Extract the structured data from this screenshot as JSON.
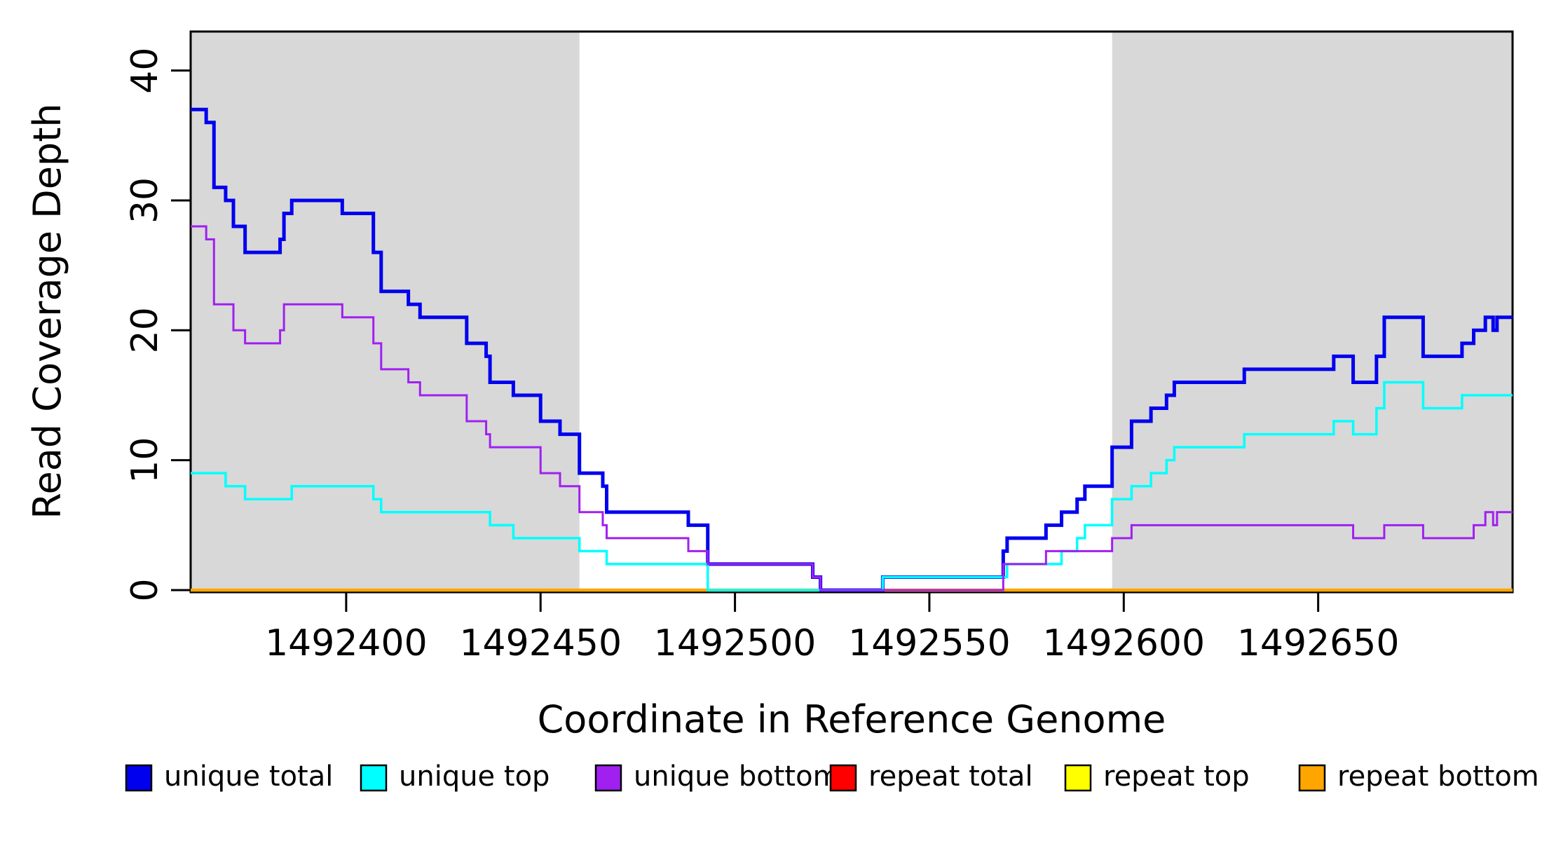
{
  "chart_data": {
    "type": "line",
    "subtype": "step",
    "title": "",
    "xlabel": "Coordinate in Reference Genome",
    "ylabel": "Read Coverage Depth",
    "xlim": [
      1492360,
      1492700
    ],
    "ylim": [
      0,
      43
    ],
    "xticks": [
      1492400,
      1492450,
      1492500,
      1492550,
      1492600,
      1492650
    ],
    "yticks": [
      0,
      10,
      20,
      30,
      40
    ],
    "grid": false,
    "legend_position": "bottom",
    "shaded_regions": [
      {
        "x0": 1492360,
        "x1": 1492460,
        "color": "#D8D8D8"
      },
      {
        "x0": 1492597,
        "x1": 1492700,
        "color": "#D8D8D8"
      }
    ],
    "draw_order": [
      "repeat total",
      "repeat top",
      "repeat bottom",
      "unique total",
      "unique top",
      "unique bottom"
    ],
    "series": [
      {
        "name": "unique total",
        "color": "#0000EE",
        "line_width": 5,
        "steps": [
          [
            1492360,
            37
          ],
          [
            1492364,
            36
          ],
          [
            1492366,
            31
          ],
          [
            1492369,
            30
          ],
          [
            1492371,
            28
          ],
          [
            1492374,
            26
          ],
          [
            1492383,
            27
          ],
          [
            1492384,
            29
          ],
          [
            1492386,
            30
          ],
          [
            1492399,
            29
          ],
          [
            1492407,
            26
          ],
          [
            1492409,
            23
          ],
          [
            1492416,
            22
          ],
          [
            1492419,
            21
          ],
          [
            1492431,
            19
          ],
          [
            1492436,
            18
          ],
          [
            1492437,
            16
          ],
          [
            1492443,
            15
          ],
          [
            1492450,
            13
          ],
          [
            1492455,
            12
          ],
          [
            1492460,
            9
          ],
          [
            1492466,
            8
          ],
          [
            1492467,
            6
          ],
          [
            1492488,
            5
          ],
          [
            1492493,
            2
          ],
          [
            1492520,
            1
          ],
          [
            1492522,
            0
          ],
          [
            1492538,
            1
          ],
          [
            1492569,
            3
          ],
          [
            1492570,
            4
          ],
          [
            1492580,
            5
          ],
          [
            1492584,
            6
          ],
          [
            1492588,
            7
          ],
          [
            1492590,
            8
          ],
          [
            1492597,
            11
          ],
          [
            1492602,
            13
          ],
          [
            1492607,
            14
          ],
          [
            1492611,
            15
          ],
          [
            1492613,
            16
          ],
          [
            1492631,
            17
          ],
          [
            1492654,
            18
          ],
          [
            1492659,
            16
          ],
          [
            1492665,
            18
          ],
          [
            1492667,
            21
          ],
          [
            1492677,
            18
          ],
          [
            1492687,
            19
          ],
          [
            1492690,
            20
          ],
          [
            1492693,
            21
          ],
          [
            1492695,
            20
          ],
          [
            1492696,
            21
          ]
        ]
      },
      {
        "name": "unique top",
        "color": "#00FFFF",
        "line_width": 3.5,
        "steps": [
          [
            1492360,
            9
          ],
          [
            1492369,
            8
          ],
          [
            1492374,
            7
          ],
          [
            1492386,
            8
          ],
          [
            1492407,
            7
          ],
          [
            1492409,
            6
          ],
          [
            1492437,
            5
          ],
          [
            1492443,
            4
          ],
          [
            1492460,
            3
          ],
          [
            1492467,
            2
          ],
          [
            1492493,
            0
          ],
          [
            1492538,
            1
          ],
          [
            1492570,
            2
          ],
          [
            1492584,
            3
          ],
          [
            1492588,
            4
          ],
          [
            1492590,
            5
          ],
          [
            1492597,
            7
          ],
          [
            1492602,
            8
          ],
          [
            1492607,
            9
          ],
          [
            1492611,
            10
          ],
          [
            1492613,
            11
          ],
          [
            1492631,
            12
          ],
          [
            1492654,
            13
          ],
          [
            1492659,
            12
          ],
          [
            1492665,
            14
          ],
          [
            1492667,
            16
          ],
          [
            1492677,
            14
          ],
          [
            1492687,
            15
          ]
        ]
      },
      {
        "name": "unique bottom",
        "color": "#A020F0",
        "line_width": 3,
        "steps": [
          [
            1492360,
            28
          ],
          [
            1492364,
            27
          ],
          [
            1492366,
            22
          ],
          [
            1492371,
            20
          ],
          [
            1492374,
            19
          ],
          [
            1492383,
            20
          ],
          [
            1492384,
            22
          ],
          [
            1492399,
            21
          ],
          [
            1492407,
            19
          ],
          [
            1492409,
            17
          ],
          [
            1492416,
            16
          ],
          [
            1492419,
            15
          ],
          [
            1492431,
            13
          ],
          [
            1492436,
            12
          ],
          [
            1492437,
            11
          ],
          [
            1492450,
            9
          ],
          [
            1492455,
            8
          ],
          [
            1492460,
            6
          ],
          [
            1492466,
            5
          ],
          [
            1492467,
            4
          ],
          [
            1492488,
            3
          ],
          [
            1492493,
            2
          ],
          [
            1492520,
            1
          ],
          [
            1492522,
            0
          ],
          [
            1492569,
            2
          ],
          [
            1492580,
            3
          ],
          [
            1492597,
            4
          ],
          [
            1492602,
            5
          ],
          [
            1492659,
            4
          ],
          [
            1492667,
            5
          ],
          [
            1492677,
            4
          ],
          [
            1492690,
            5
          ],
          [
            1492693,
            6
          ],
          [
            1492695,
            5
          ],
          [
            1492696,
            6
          ]
        ]
      },
      {
        "name": "repeat total",
        "color": "#FF0000",
        "line_width": 3,
        "steps": [
          [
            1492360,
            0
          ]
        ]
      },
      {
        "name": "repeat top",
        "color": "#FFFF00",
        "line_width": 3,
        "steps": [
          [
            1492360,
            0
          ]
        ]
      },
      {
        "name": "repeat bottom",
        "color": "#FFA500",
        "line_width": 4.5,
        "steps": [
          [
            1492360,
            0
          ]
        ]
      }
    ]
  },
  "legend": {
    "entries": [
      {
        "label": "unique total",
        "color": "#0000EE"
      },
      {
        "label": "unique top",
        "color": "#00FFFF"
      },
      {
        "label": "unique bottom",
        "color": "#A020F0"
      },
      {
        "label": "repeat total",
        "color": "#FF0000"
      },
      {
        "label": "repeat top",
        "color": "#FFFF00"
      },
      {
        "label": "repeat bottom",
        "color": "#FFA500"
      }
    ]
  }
}
